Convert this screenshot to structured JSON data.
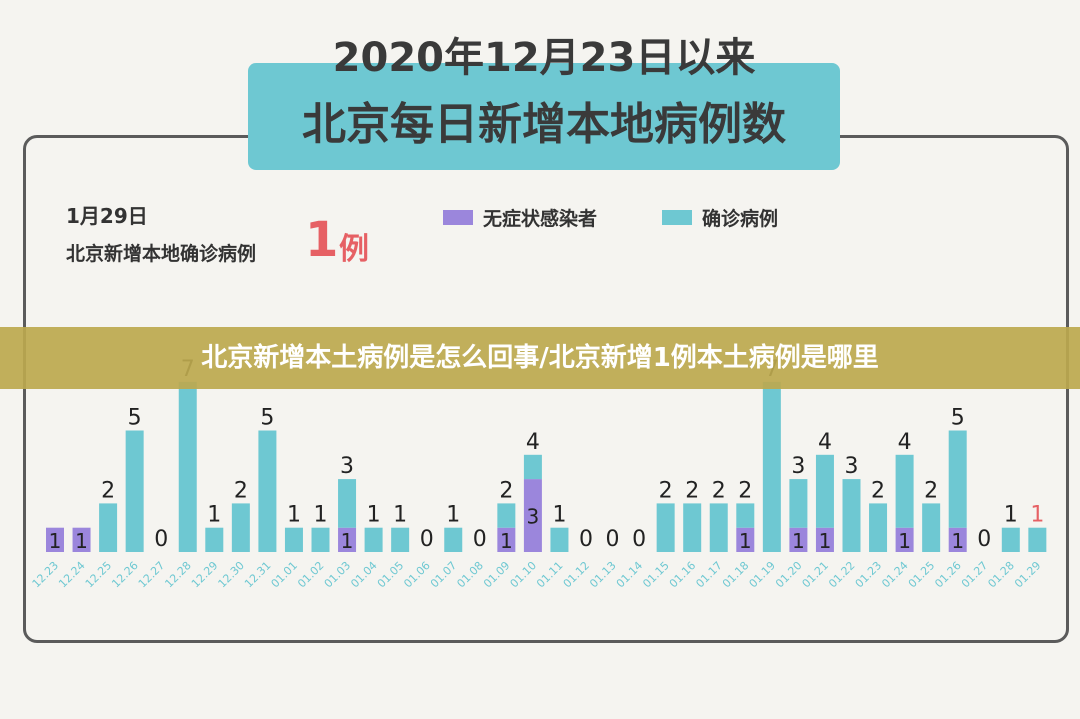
{
  "header": {
    "line1": "2020年12月23日以来",
    "line2": "北京每日新增本地病例数"
  },
  "summary": {
    "date": "1月29日",
    "label": "北京新增本地确诊病例",
    "count": "1",
    "unit": "例"
  },
  "banner": {
    "text": "北京新增本土病例是怎么回事/北京新增1例本土病例是哪里"
  },
  "colors": {
    "asymptomatic": "#9b86dc",
    "confirmed": "#6ec8d2",
    "highlight": "#e66064",
    "axis_text": "#6ec8d2"
  },
  "chart_data": {
    "type": "bar",
    "stacked": true,
    "categories": [
      "12.23",
      "12.24",
      "12.25",
      "12.26",
      "12.27",
      "12.28",
      "12.29",
      "12.30",
      "12.31",
      "01.01",
      "01.02",
      "01.03",
      "01.04",
      "01.05",
      "01.06",
      "01.07",
      "01.08",
      "01.09",
      "01.10",
      "01.11",
      "01.12",
      "01.13",
      "01.14",
      "01.15",
      "01.16",
      "01.17",
      "01.18",
      "01.19",
      "01.20",
      "01.21",
      "01.22",
      "01.23",
      "01.24",
      "01.25",
      "01.26",
      "01.27",
      "01.28",
      "01.29"
    ],
    "series": [
      {
        "name": "无症状感染者",
        "values": [
          1,
          1,
          0,
          0,
          0,
          0,
          0,
          0,
          0,
          0,
          0,
          1,
          0,
          0,
          0,
          0,
          0,
          1,
          3,
          0,
          0,
          0,
          0,
          0,
          0,
          0,
          1,
          0,
          1,
          1,
          0,
          0,
          1,
          0,
          1,
          0,
          0,
          0
        ]
      },
      {
        "name": "确诊病例",
        "values": [
          0,
          0,
          2,
          5,
          0,
          7,
          1,
          2,
          5,
          1,
          1,
          2,
          1,
          1,
          0,
          1,
          0,
          1,
          1,
          1,
          0,
          0,
          0,
          2,
          2,
          2,
          1,
          7,
          2,
          3,
          3,
          2,
          3,
          2,
          4,
          0,
          1,
          1
        ]
      }
    ],
    "ylim": [
      0,
      7
    ],
    "legend": "top"
  }
}
